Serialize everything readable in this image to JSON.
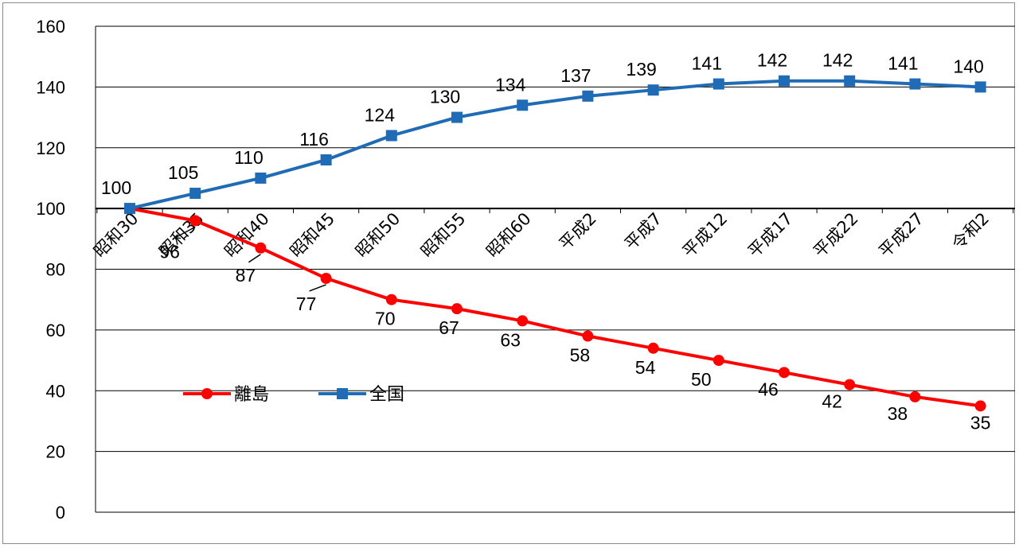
{
  "chart_data": {
    "type": "line",
    "categories": [
      "昭和30",
      "昭和35",
      "昭和40",
      "昭和45",
      "昭和50",
      "昭和55",
      "昭和60",
      "平成2",
      "平成7",
      "平成12",
      "平成17",
      "平成22",
      "平成27",
      "令和2"
    ],
    "series": [
      {
        "name": "離島",
        "values": [
          100,
          96,
          87,
          77,
          70,
          67,
          63,
          58,
          54,
          50,
          46,
          42,
          38,
          35
        ],
        "color": "#ff0000",
        "marker": "circle"
      },
      {
        "name": "全国",
        "values": [
          100,
          105,
          110,
          116,
          124,
          130,
          134,
          137,
          139,
          141,
          142,
          142,
          141,
          140
        ],
        "color": "#1f6bb5",
        "marker": "square"
      }
    ],
    "ylim": [
      0,
      160
    ],
    "yticks": [
      0,
      20,
      40,
      60,
      80,
      100,
      120,
      140,
      160
    ],
    "xaxis_at": 100,
    "grid": true,
    "legend": "middle-left",
    "data_labels": true
  }
}
